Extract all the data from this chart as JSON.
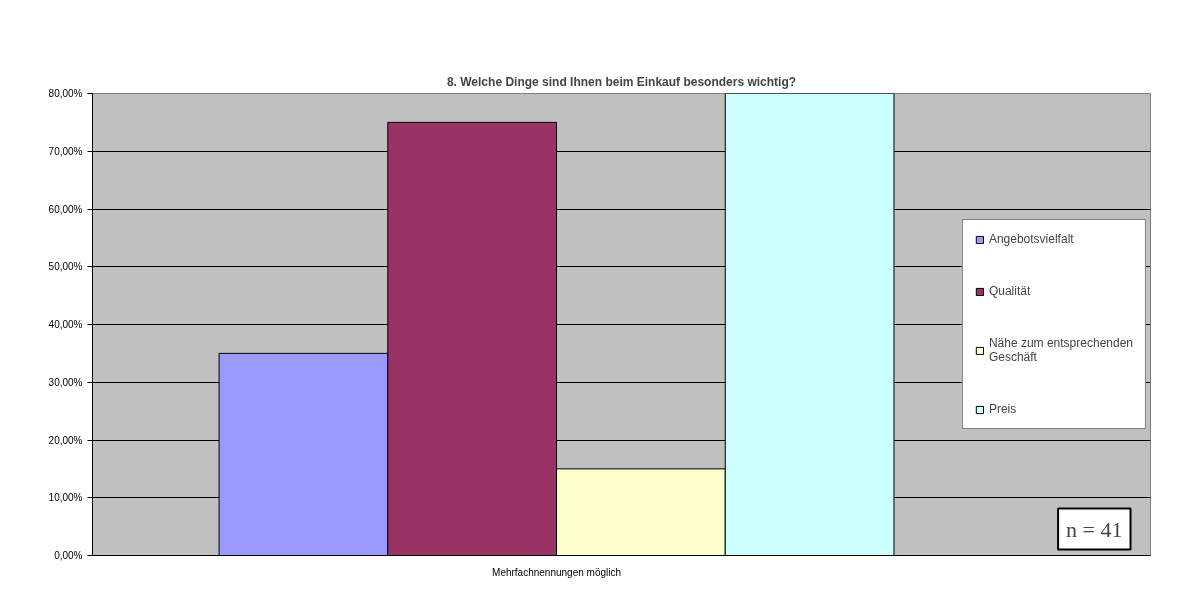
{
  "chart_data": {
    "type": "bar",
    "title": "8. Welche Dinge sind Ihnen beim Einkauf besonders wichtig?",
    "categories": [
      "Mehrfachnennungen möglich"
    ],
    "series": [
      {
        "name": "Angebotsvielfalt",
        "color": "#9999ff",
        "values": [
          35
        ]
      },
      {
        "name": "Qualität",
        "color": "#993366",
        "values": [
          75
        ]
      },
      {
        "name": "Nähe zum entsprechenden Geschäft",
        "color": "#ffffcc",
        "values": [
          15
        ]
      },
      {
        "name": "Preis",
        "color": "#ccffff",
        "values": [
          80
        ]
      }
    ],
    "ylim": [
      0,
      80
    ],
    "yticks": [
      {
        "value": 0,
        "label": "0,00%"
      },
      {
        "value": 10,
        "label": "10,00%"
      },
      {
        "value": 20,
        "label": "20,00%"
      },
      {
        "value": 30,
        "label": "30,00%"
      },
      {
        "value": 40,
        "label": "40,00%"
      },
      {
        "value": 50,
        "label": "50,00%"
      },
      {
        "value": 60,
        "label": "60,00%"
      },
      {
        "value": 70,
        "label": "70,00%"
      },
      {
        "value": 80,
        "label": "80,00%"
      }
    ],
    "grid": "y",
    "legend": "right",
    "annotations": [
      "n = 41"
    ]
  }
}
